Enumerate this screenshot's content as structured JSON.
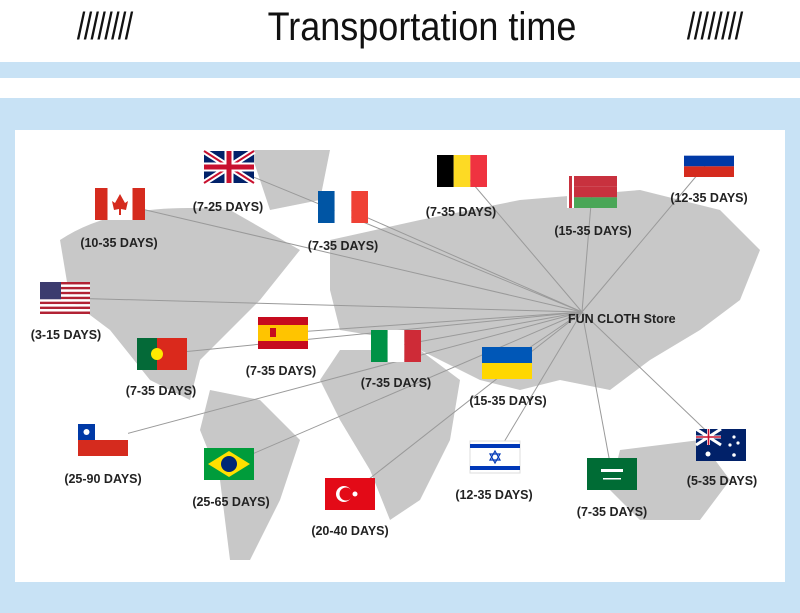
{
  "header": {
    "title": "Transportation time",
    "left_decoration": "////////",
    "right_decoration": "////////"
  },
  "hub": {
    "label": "FUN CLOTH Store"
  },
  "destinations": [
    {
      "flag": "uk-flag",
      "days": "(7-25 DAYS)"
    },
    {
      "flag": "canada-flag",
      "days": "(10-35 DAYS)"
    },
    {
      "flag": "france-flag",
      "days": "(7-35 DAYS)"
    },
    {
      "flag": "belgium-flag",
      "days": "(7-35 DAYS)"
    },
    {
      "flag": "belarus-flag",
      "days": "(15-35 DAYS)"
    },
    {
      "flag": "russia-flag",
      "days": "(12-35 DAYS)"
    },
    {
      "flag": "usa-flag",
      "days": "(3-15 DAYS)"
    },
    {
      "flag": "portugal-flag",
      "days": "(7-35 DAYS)"
    },
    {
      "flag": "spain-flag",
      "days": "(7-35 DAYS)"
    },
    {
      "flag": "italy-flag",
      "days": "(7-35 DAYS)"
    },
    {
      "flag": "ukraine-flag",
      "days": "(15-35 DAYS)"
    },
    {
      "flag": "chile-flag",
      "days": "(25-90 DAYS)"
    },
    {
      "flag": "brazil-flag",
      "days": "(25-65 DAYS)"
    },
    {
      "flag": "turkey-flag",
      "days": "(20-40 DAYS)"
    },
    {
      "flag": "israel-flag",
      "days": "(12-35 DAYS)"
    },
    {
      "flag": "saudi-arabia-flag",
      "days": "(7-35 DAYS)"
    },
    {
      "flag": "australia-flag",
      "days": "(5-35 DAYS)"
    }
  ],
  "colors": {
    "band": "#c8e2f5",
    "map": "#c8c8c8",
    "line": "#9a9a9a"
  }
}
